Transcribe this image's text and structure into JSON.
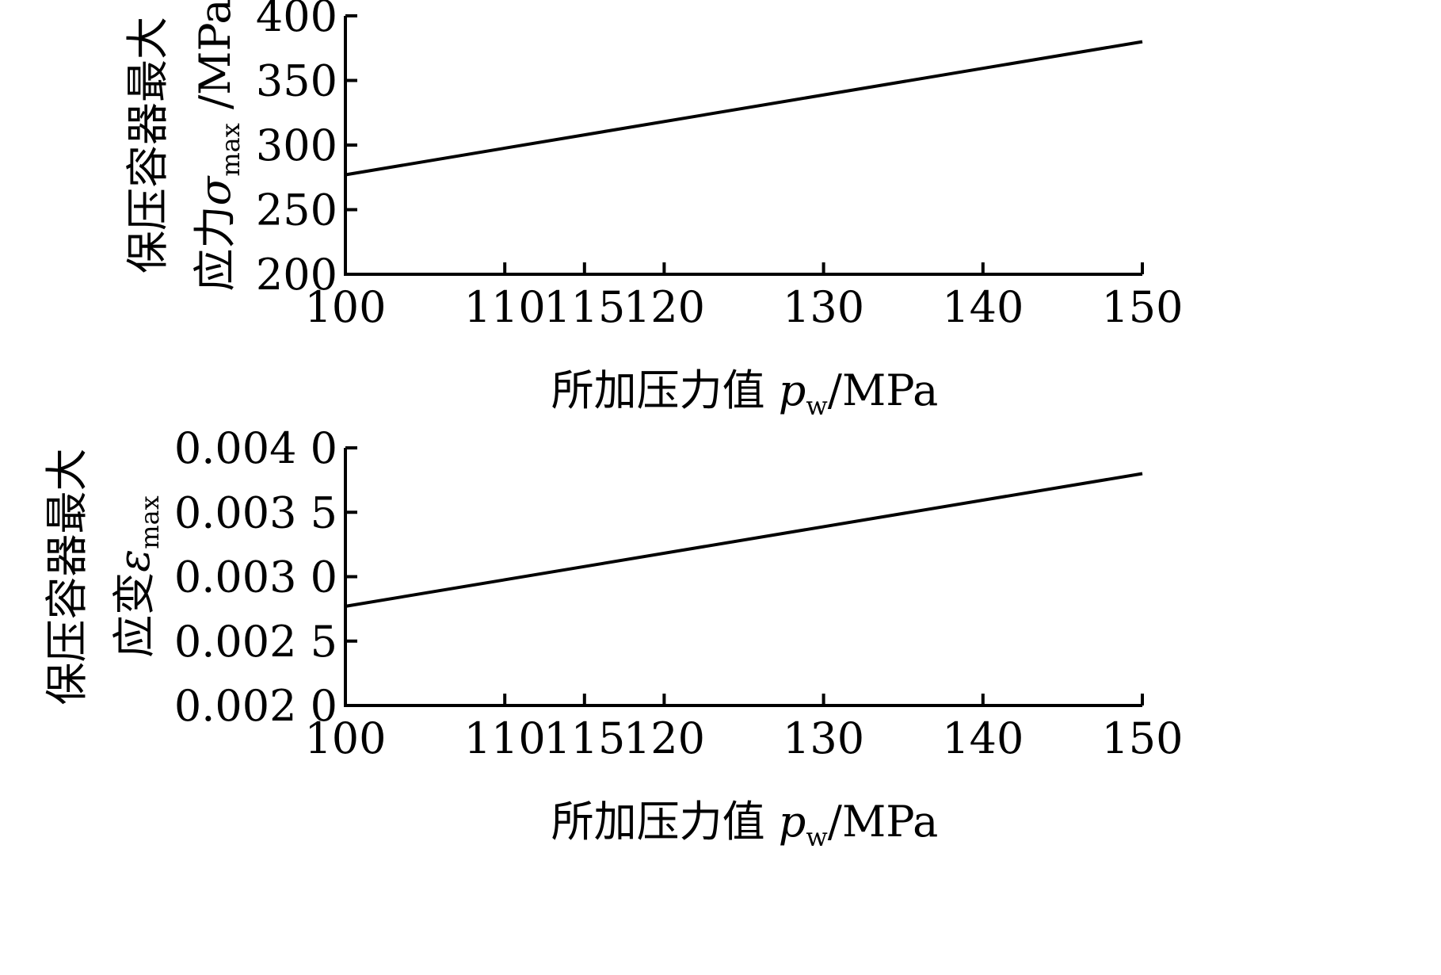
{
  "chart_data": [
    {
      "type": "line",
      "title": "",
      "xlabel": {
        "prefix": "所加压力值",
        "symbol": "p",
        "subscript": "w",
        "unit": "/MPa"
      },
      "ylabel": {
        "line1": "保压容器最大",
        "line2_prefix": "应力",
        "symbol": "σ",
        "subscript": "max",
        "unit": "/MPa"
      },
      "xlim": [
        100,
        150
      ],
      "ylim": [
        200,
        400
      ],
      "xticks": [
        100,
        110,
        115,
        120,
        130,
        140,
        150
      ],
      "yticks": [
        200,
        250,
        300,
        350,
        400
      ],
      "xtick_labels": [
        "100",
        "110",
        "115",
        "120",
        "130",
        "140",
        "150"
      ],
      "ytick_labels": [
        "200",
        "250",
        "300",
        "350",
        "400"
      ],
      "series": [
        {
          "x": [
            100,
            150
          ],
          "y": [
            277,
            380
          ]
        }
      ],
      "grid": false,
      "legend": "none"
    },
    {
      "type": "line",
      "title": "",
      "xlabel": {
        "prefix": "所加压力值",
        "symbol": "p",
        "subscript": "w",
        "unit": "/MPa"
      },
      "ylabel": {
        "line1": "保压容器最大",
        "line2_prefix": "应变",
        "symbol": "ε",
        "subscript": "max",
        "unit": ""
      },
      "xlim": [
        100,
        150
      ],
      "ylim": [
        0.002,
        0.004
      ],
      "xticks": [
        100,
        110,
        115,
        120,
        130,
        140,
        150
      ],
      "yticks": [
        0.002,
        0.0025,
        0.003,
        0.0035,
        0.004
      ],
      "xtick_labels": [
        "100",
        "110",
        "115",
        "120",
        "130",
        "140",
        "150"
      ],
      "ytick_labels": [
        "0.002 0",
        "0.002 5",
        "0.003 0",
        "0.003 5",
        "0.004 0"
      ],
      "series": [
        {
          "x": [
            100,
            150
          ],
          "y": [
            0.00277,
            0.0038
          ]
        }
      ],
      "grid": false,
      "legend": "none"
    }
  ]
}
